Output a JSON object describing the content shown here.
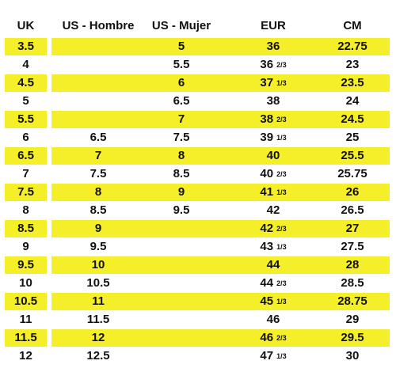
{
  "colors": {
    "highlight": "#f5ef2a",
    "text": "#111111",
    "background": "#ffffff"
  },
  "headers": {
    "uk": "UK",
    "us_hombre": "US - Hombre",
    "us_mujer": "US - Mujer",
    "eur": "EUR",
    "cm": "CM"
  },
  "rows": [
    {
      "uk": "3.5",
      "us_hombre": "",
      "us_mujer": "5",
      "eur": "36",
      "eur_frac": "",
      "cm": "22.75",
      "highlighted": true
    },
    {
      "uk": "4",
      "us_hombre": "",
      "us_mujer": "5.5",
      "eur": "36",
      "eur_frac": "2/3",
      "cm": "23",
      "highlighted": false
    },
    {
      "uk": "4.5",
      "us_hombre": "",
      "us_mujer": "6",
      "eur": "37",
      "eur_frac": "1/3",
      "cm": "23.5",
      "highlighted": true
    },
    {
      "uk": "5",
      "us_hombre": "",
      "us_mujer": "6.5",
      "eur": "38",
      "eur_frac": "",
      "cm": "24",
      "highlighted": false
    },
    {
      "uk": "5.5",
      "us_hombre": "",
      "us_mujer": "7",
      "eur": "38",
      "eur_frac": "2/3",
      "cm": "24.5",
      "highlighted": true
    },
    {
      "uk": "6",
      "us_hombre": "6.5",
      "us_mujer": "7.5",
      "eur": "39",
      "eur_frac": "1/3",
      "cm": "25",
      "highlighted": false
    },
    {
      "uk": "6.5",
      "us_hombre": "7",
      "us_mujer": "8",
      "eur": "40",
      "eur_frac": "",
      "cm": "25.5",
      "highlighted": true
    },
    {
      "uk": "7",
      "us_hombre": "7.5",
      "us_mujer": "8.5",
      "eur": "40",
      "eur_frac": "2/3",
      "cm": "25.75",
      "highlighted": false
    },
    {
      "uk": "7.5",
      "us_hombre": "8",
      "us_mujer": "9",
      "eur": "41",
      "eur_frac": "1/3",
      "cm": "26",
      "highlighted": true
    },
    {
      "uk": "8",
      "us_hombre": "8.5",
      "us_mujer": "9.5",
      "eur": "42",
      "eur_frac": "",
      "cm": "26.5",
      "highlighted": false
    },
    {
      "uk": "8.5",
      "us_hombre": "9",
      "us_mujer": "",
      "eur": "42",
      "eur_frac": "2/3",
      "cm": "27",
      "highlighted": true
    },
    {
      "uk": "9",
      "us_hombre": "9.5",
      "us_mujer": "",
      "eur": "43",
      "eur_frac": "1/3",
      "cm": "27.5",
      "highlighted": false
    },
    {
      "uk": "9.5",
      "us_hombre": "10",
      "us_mujer": "",
      "eur": "44",
      "eur_frac": "",
      "cm": "28",
      "highlighted": true
    },
    {
      "uk": "10",
      "us_hombre": "10.5",
      "us_mujer": "",
      "eur": "44",
      "eur_frac": "2/3",
      "cm": "28.5",
      "highlighted": false
    },
    {
      "uk": "10.5",
      "us_hombre": "11",
      "us_mujer": "",
      "eur": "45",
      "eur_frac": "1/3",
      "cm": "28.75",
      "highlighted": true
    },
    {
      "uk": "11",
      "us_hombre": "11.5",
      "us_mujer": "",
      "eur": "46",
      "eur_frac": "",
      "cm": "29",
      "highlighted": false
    },
    {
      "uk": "11.5",
      "us_hombre": "12",
      "us_mujer": "",
      "eur": "46",
      "eur_frac": "2/3",
      "cm": "29.5",
      "highlighted": true
    },
    {
      "uk": "12",
      "us_hombre": "12.5",
      "us_mujer": "",
      "eur": "47",
      "eur_frac": "1/3",
      "cm": "30",
      "highlighted": false
    }
  ]
}
